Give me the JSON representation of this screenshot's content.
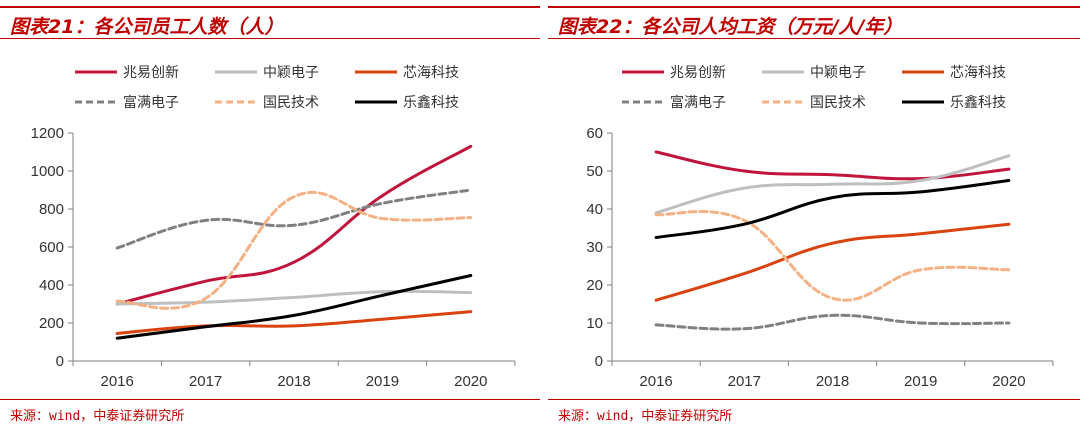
{
  "charts": [
    {
      "title": "图表21：各公司员工人数（人）",
      "source": "来源：wind，中泰证券研究所",
      "chart_data": {
        "type": "line",
        "categories": [
          "2016",
          "2017",
          "2018",
          "2019",
          "2020"
        ],
        "ylim": [
          0,
          1200
        ],
        "yticks": [
          0,
          200,
          400,
          600,
          800,
          1000,
          1200
        ],
        "series": [
          {
            "name": "兆易创新",
            "color": "#c0143c",
            "dash": "solid",
            "values": [
              300,
              420,
              520,
              870,
              1130
            ]
          },
          {
            "name": "中颖电子",
            "color": "#bfbfbf",
            "dash": "solid",
            "values": [
              300,
              310,
              335,
              365,
              360
            ]
          },
          {
            "name": "芯海科技",
            "color": "#d9430f",
            "dash": "solid",
            "values": [
              145,
              185,
              185,
              220,
              260
            ]
          },
          {
            "name": "富满电子",
            "color": "#808080",
            "dash": "dashed",
            "values": [
              595,
              740,
              715,
              830,
              900
            ]
          },
          {
            "name": "国民技术",
            "color": "#f4b183",
            "dash": "dashed",
            "values": [
              315,
              330,
              865,
              750,
              755
            ]
          },
          {
            "name": "乐鑫科技",
            "color": "#000000",
            "dash": "solid",
            "values": [
              120,
              180,
              240,
              345,
              450
            ]
          }
        ]
      }
    },
    {
      "title": "图表22：各公司人均工资（万元/人/年）",
      "source": "来源：wind，中泰证券研究所",
      "chart_data": {
        "type": "line",
        "categories": [
          "2016",
          "2017",
          "2018",
          "2019",
          "2020"
        ],
        "ylim": [
          0,
          60
        ],
        "yticks": [
          0,
          10,
          20,
          30,
          40,
          50,
          60
        ],
        "series": [
          {
            "name": "兆易创新",
            "color": "#c0143c",
            "dash": "solid",
            "values": [
              55,
              50,
              49,
              48,
              50.5
            ]
          },
          {
            "name": "中颖电子",
            "color": "#bfbfbf",
            "dash": "solid",
            "values": [
              39,
              45.5,
              46.5,
              47.5,
              54
            ]
          },
          {
            "name": "芯海科技",
            "color": "#d9430f",
            "dash": "solid",
            "values": [
              16,
              23,
              31,
              33.5,
              36
            ]
          },
          {
            "name": "富满电子",
            "color": "#808080",
            "dash": "dashed",
            "values": [
              9.5,
              8.5,
              12,
              10,
              10
            ]
          },
          {
            "name": "国民技术",
            "color": "#f4b183",
            "dash": "dashed",
            "values": [
              38.5,
              37,
              16.5,
              24,
              24
            ]
          },
          {
            "name": "乐鑫科技",
            "color": "#000000",
            "dash": "solid",
            "values": [
              32.5,
              36,
              43,
              44.5,
              47.5
            ]
          }
        ]
      }
    }
  ]
}
